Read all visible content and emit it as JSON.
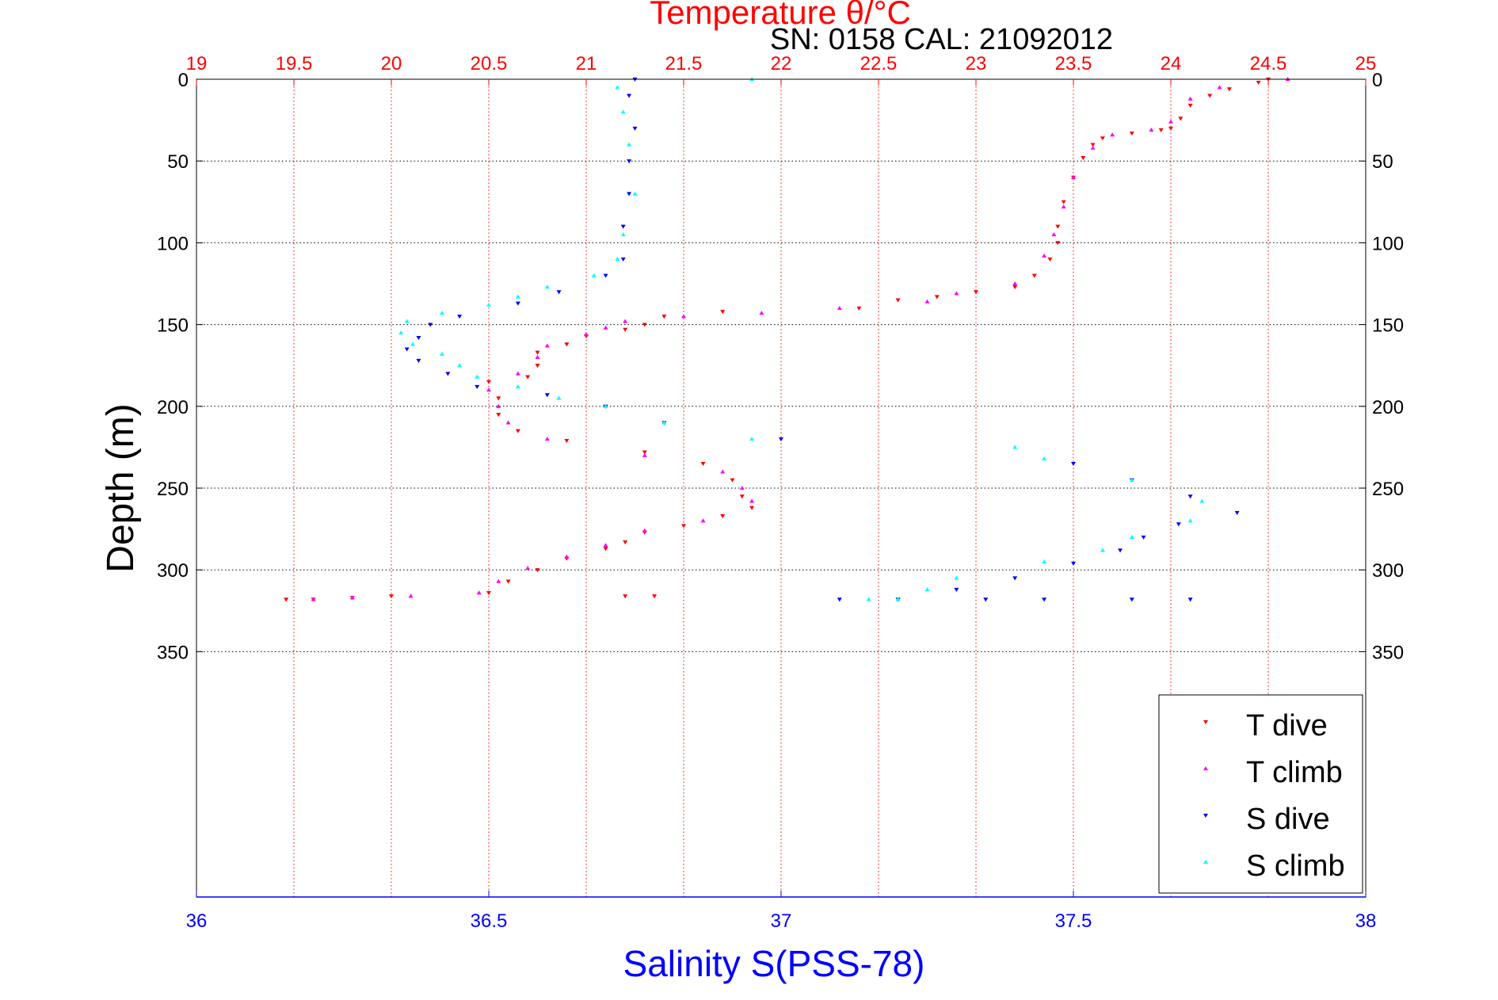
{
  "chart_data": {
    "type": "scatter",
    "title": "Temperature θ/°C",
    "subtitle": "SN: 0158  CAL: 21092012",
    "ylabel": "Depth (m)",
    "xlabel": "Salinity S(PSS-78)",
    "ylim": [
      0,
      500
    ],
    "y_reversed": true,
    "y_ticks": [
      0,
      50,
      100,
      150,
      200,
      250,
      300,
      350
    ],
    "x_top": {
      "label": "Temperature θ/°C",
      "lim": [
        19,
        25
      ],
      "ticks": [
        "19",
        "19.5",
        "20",
        "20.5",
        "21",
        "21.5",
        "22",
        "22.5",
        "23",
        "23.5",
        "24",
        "24.5",
        "25"
      ],
      "color": "#ff0000"
    },
    "x_bottom": {
      "label": "Salinity S(PSS-78)",
      "lim": [
        36,
        38
      ],
      "ticks": [
        "36",
        "36.5",
        "37",
        "37.5",
        "38"
      ],
      "color": "#0000ff"
    },
    "grid": true,
    "legend_position": "bottom-right",
    "series": [
      {
        "name": "T dive",
        "axis": "top",
        "marker": "triangle-down",
        "color": "#ff0000",
        "points": [
          [
            24.5,
            0
          ],
          [
            24.45,
            2
          ],
          [
            24.3,
            6
          ],
          [
            24.2,
            10
          ],
          [
            24.1,
            16
          ],
          [
            24.05,
            24
          ],
          [
            24.0,
            30
          ],
          [
            23.95,
            31
          ],
          [
            23.8,
            33
          ],
          [
            23.65,
            36
          ],
          [
            23.6,
            40
          ],
          [
            23.55,
            48
          ],
          [
            23.5,
            60
          ],
          [
            23.45,
            75
          ],
          [
            23.42,
            90
          ],
          [
            23.42,
            100
          ],
          [
            23.38,
            110
          ],
          [
            23.3,
            120
          ],
          [
            23.2,
            127
          ],
          [
            23.0,
            130
          ],
          [
            22.8,
            133
          ],
          [
            22.6,
            135
          ],
          [
            22.4,
            140
          ],
          [
            21.7,
            142
          ],
          [
            21.4,
            145
          ],
          [
            21.3,
            150
          ],
          [
            21.2,
            153
          ],
          [
            21.0,
            157
          ],
          [
            20.9,
            162
          ],
          [
            20.75,
            167
          ],
          [
            20.75,
            175
          ],
          [
            20.7,
            182
          ],
          [
            20.5,
            185
          ],
          [
            20.55,
            195
          ],
          [
            20.55,
            205
          ],
          [
            20.65,
            215
          ],
          [
            20.9,
            221
          ],
          [
            21.3,
            228
          ],
          [
            21.6,
            235
          ],
          [
            21.75,
            245
          ],
          [
            21.8,
            255
          ],
          [
            21.85,
            262
          ],
          [
            21.7,
            267
          ],
          [
            21.5,
            273
          ],
          [
            21.3,
            277
          ],
          [
            21.2,
            283
          ],
          [
            21.1,
            287
          ],
          [
            20.9,
            293
          ],
          [
            20.75,
            300
          ],
          [
            20.6,
            307
          ],
          [
            20.5,
            314
          ],
          [
            20.0,
            316
          ],
          [
            19.8,
            317
          ],
          [
            19.6,
            318
          ],
          [
            19.46,
            318
          ],
          [
            21.2,
            316
          ],
          [
            21.35,
            316
          ]
        ]
      },
      {
        "name": "T climb",
        "axis": "top",
        "marker": "triangle-up",
        "color": "#ff00ff",
        "points": [
          [
            24.6,
            0
          ],
          [
            24.25,
            5
          ],
          [
            24.1,
            12
          ],
          [
            24.0,
            26
          ],
          [
            23.9,
            31
          ],
          [
            23.7,
            34
          ],
          [
            23.6,
            42
          ],
          [
            23.5,
            60
          ],
          [
            23.45,
            78
          ],
          [
            23.4,
            95
          ],
          [
            23.35,
            108
          ],
          [
            23.2,
            125
          ],
          [
            22.9,
            131
          ],
          [
            22.75,
            136
          ],
          [
            22.3,
            140
          ],
          [
            21.9,
            143
          ],
          [
            21.5,
            145
          ],
          [
            21.2,
            148
          ],
          [
            21.1,
            152
          ],
          [
            21.0,
            156
          ],
          [
            20.8,
            163
          ],
          [
            20.75,
            170
          ],
          [
            20.65,
            180
          ],
          [
            20.5,
            190
          ],
          [
            20.55,
            200
          ],
          [
            20.6,
            210
          ],
          [
            20.8,
            220
          ],
          [
            21.3,
            230
          ],
          [
            21.7,
            240
          ],
          [
            21.8,
            250
          ],
          [
            21.85,
            258
          ],
          [
            21.6,
            270
          ],
          [
            21.3,
            276
          ],
          [
            21.1,
            285
          ],
          [
            20.9,
            292
          ],
          [
            20.7,
            299
          ],
          [
            20.55,
            307
          ],
          [
            20.45,
            314
          ],
          [
            20.1,
            316
          ],
          [
            19.8,
            317
          ],
          [
            19.6,
            318
          ]
        ]
      },
      {
        "name": "S dive",
        "axis": "bottom",
        "marker": "triangle-down",
        "color": "#0000ff",
        "points": [
          [
            36.75,
            0
          ],
          [
            36.74,
            10
          ],
          [
            36.75,
            30
          ],
          [
            36.74,
            50
          ],
          [
            36.74,
            70
          ],
          [
            36.73,
            90
          ],
          [
            36.73,
            110
          ],
          [
            36.7,
            120
          ],
          [
            36.62,
            130
          ],
          [
            36.55,
            137
          ],
          [
            36.45,
            145
          ],
          [
            36.4,
            150
          ],
          [
            36.38,
            158
          ],
          [
            36.36,
            165
          ],
          [
            36.38,
            172
          ],
          [
            36.43,
            180
          ],
          [
            36.48,
            188
          ],
          [
            36.6,
            193
          ],
          [
            36.7,
            200
          ],
          [
            36.8,
            210
          ],
          [
            37.0,
            220
          ],
          [
            37.5,
            235
          ],
          [
            37.6,
            245
          ],
          [
            37.7,
            255
          ],
          [
            37.78,
            265
          ],
          [
            37.68,
            272
          ],
          [
            37.62,
            280
          ],
          [
            37.58,
            288
          ],
          [
            37.5,
            296
          ],
          [
            37.4,
            305
          ],
          [
            37.3,
            312
          ],
          [
            37.2,
            318
          ],
          [
            37.1,
            318
          ],
          [
            37.35,
            318
          ],
          [
            37.45,
            318
          ],
          [
            37.6,
            318
          ],
          [
            37.7,
            318
          ]
        ]
      },
      {
        "name": "S climb",
        "axis": "bottom",
        "marker": "triangle-up",
        "color": "#00ffff",
        "points": [
          [
            36.95,
            0
          ],
          [
            36.72,
            5
          ],
          [
            36.73,
            20
          ],
          [
            36.74,
            40
          ],
          [
            36.75,
            70
          ],
          [
            36.73,
            95
          ],
          [
            36.72,
            110
          ],
          [
            36.68,
            120
          ],
          [
            36.6,
            127
          ],
          [
            36.55,
            133
          ],
          [
            36.5,
            138
          ],
          [
            36.42,
            143
          ],
          [
            36.36,
            148
          ],
          [
            36.35,
            155
          ],
          [
            36.37,
            162
          ],
          [
            36.42,
            168
          ],
          [
            36.45,
            175
          ],
          [
            36.48,
            182
          ],
          [
            36.55,
            188
          ],
          [
            36.62,
            195
          ],
          [
            36.7,
            200
          ],
          [
            36.8,
            210
          ],
          [
            36.95,
            220
          ],
          [
            37.4,
            225
          ],
          [
            37.45,
            232
          ],
          [
            37.6,
            245
          ],
          [
            37.72,
            258
          ],
          [
            37.7,
            270
          ],
          [
            37.6,
            280
          ],
          [
            37.55,
            288
          ],
          [
            37.45,
            295
          ],
          [
            37.3,
            305
          ],
          [
            37.25,
            312
          ],
          [
            37.2,
            318
          ],
          [
            37.15,
            318
          ]
        ]
      }
    ]
  }
}
